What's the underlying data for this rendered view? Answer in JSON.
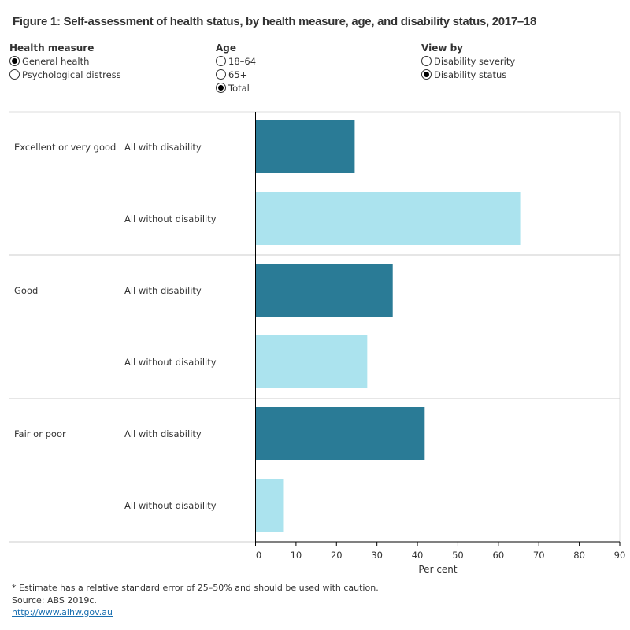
{
  "title": "Figure 1: Self-assessment of health status, by health measure, age, and disability status, 2017–18",
  "controls": [
    {
      "label": "Health measure",
      "options": [
        {
          "label": "General health",
          "selected": true
        },
        {
          "label": "Psychological distress",
          "selected": false
        }
      ]
    },
    {
      "label": "Age",
      "options": [
        {
          "label": "18–64",
          "selected": false
        },
        {
          "label": "65+",
          "selected": false
        },
        {
          "label": "Total",
          "selected": true
        }
      ]
    },
    {
      "label": "View by",
      "options": [
        {
          "label": "Disability severity",
          "selected": false
        },
        {
          "label": "Disability status",
          "selected": true
        }
      ]
    }
  ],
  "chart_data": {
    "type": "bar",
    "orientation": "horizontal",
    "groups": [
      "Excellent or very good",
      "Good",
      "Fair or poor"
    ],
    "categories": [
      "All with disability",
      "All without disability"
    ],
    "values": [
      [
        24.5,
        65.4
      ],
      [
        33.9,
        27.6
      ],
      [
        41.8,
        7.0
      ]
    ],
    "colors": {
      "All with disability": "#2a7b96",
      "All without disability": "#abe3ee"
    },
    "xlabel": "Per cent",
    "xlim": [
      0,
      90
    ],
    "xticks": [
      "0",
      "10",
      "20",
      "30",
      "40",
      "50",
      "60",
      "70",
      "80",
      "90"
    ],
    "grid": false
  },
  "footer": {
    "note": "* Estimate has a relative standard error of 25–50% and should be used with caution.",
    "source": "Source: ABS 2019c.",
    "link": "http://www.aihw.gov.au"
  }
}
